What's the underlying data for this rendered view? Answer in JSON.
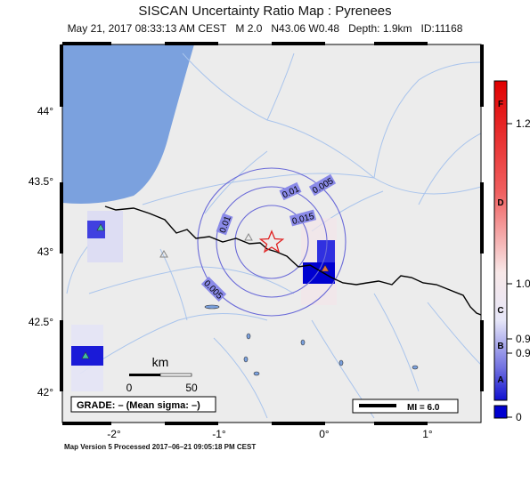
{
  "map": {
    "title": "SISCAN Uncertainty Ratio Map : Pyrenees",
    "event_line": {
      "date": "May 21, 2017 08:33:13 AM CEST",
      "magnitude": "M 2.0",
      "location": "N43.06 W0.48",
      "depth": "Depth: 1.9km",
      "id": "ID:11168"
    },
    "lat_ticks": [
      "44°",
      "43.5°",
      "43°",
      "42.5°",
      "42°"
    ],
    "lon_ticks": [
      "-2°",
      "-1°",
      "0°",
      "1°"
    ],
    "contour_labels": [
      "0.005",
      "0.01",
      "0.015",
      "0.01",
      "0.005"
    ],
    "scale_bar": {
      "unit": "km",
      "start": "0",
      "end": "50"
    },
    "grade_box": "GRADE: – (Mean sigma: –)",
    "mi_box": "MI = 6.0",
    "footer": "Map Version 5 Processed 2017–06–21 09:05:18 PM CEST",
    "colorbar": {
      "grades": [
        "F",
        "D",
        "C",
        "B",
        "A"
      ],
      "values": [
        "1.2",
        "1.0",
        "0.9",
        "0.9",
        "0"
      ]
    },
    "colors": {
      "land": "#ececec",
      "ocean": "#7ba1de",
      "contour": "#6a6ad8",
      "border": "#000000",
      "rivers": "#a9c4ec",
      "epicenter": "#e02020",
      "station_cell_dark": "#0000d0"
    }
  }
}
